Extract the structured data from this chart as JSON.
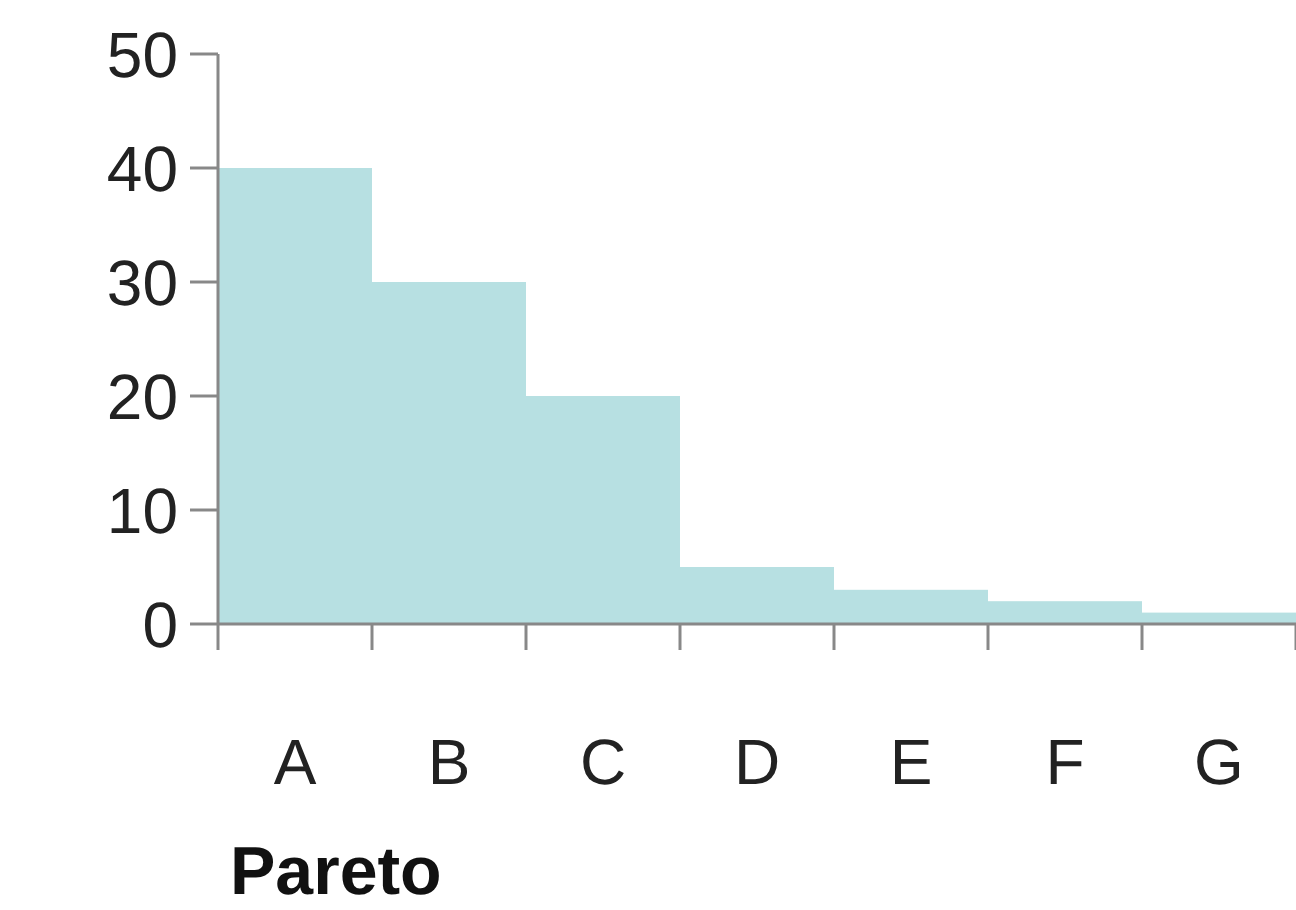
{
  "chart_data": {
    "type": "bar",
    "xlabel": "Pareto",
    "categories": [
      "A",
      "B",
      "C",
      "D",
      "E",
      "F",
      "G"
    ],
    "values": [
      40,
      30,
      20,
      5,
      3,
      2,
      1
    ],
    "color": "#b7e0e2",
    "ylim": [
      0,
      50
    ],
    "yticks": [
      0,
      10,
      20,
      30,
      40,
      50
    ]
  }
}
